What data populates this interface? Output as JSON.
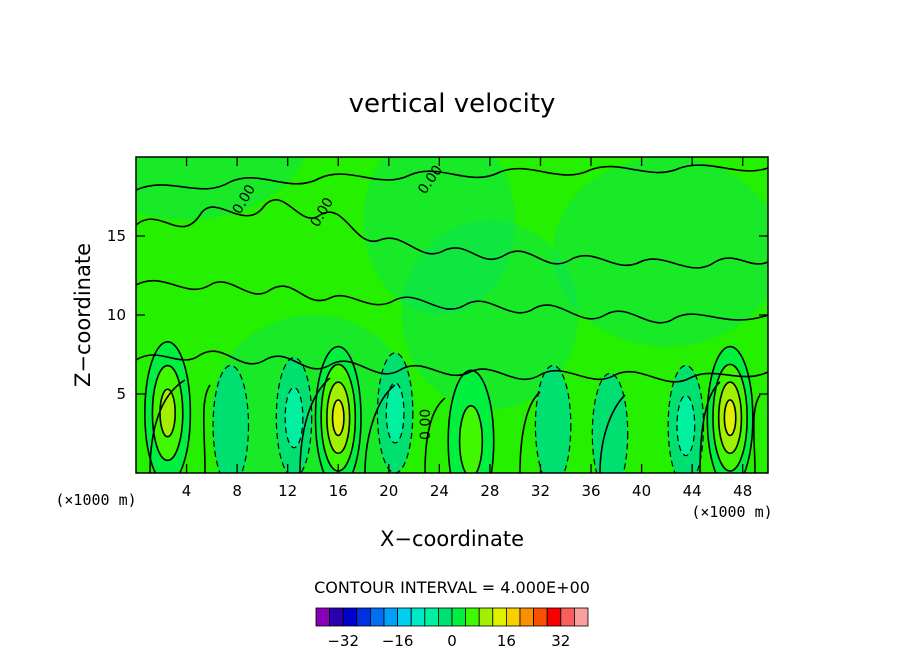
{
  "chart_data": {
    "type": "contour",
    "title": "vertical velocity",
    "xlabel": "X−coordinate",
    "ylabel": "Z−coordinate",
    "x_unit": "(×1000 m)",
    "y_unit": "(×1000 m)",
    "xlim": [
      0,
      50
    ],
    "ylim": [
      0,
      20
    ],
    "x_ticks": [
      4,
      8,
      12,
      16,
      20,
      24,
      28,
      32,
      36,
      40,
      44,
      48
    ],
    "x_tick_labels": [
      "4",
      "8",
      "12",
      "16",
      "20",
      "24",
      "28",
      "32",
      "36",
      "40",
      "44",
      "48"
    ],
    "y_ticks": [
      5,
      10,
      15
    ],
    "y_tick_labels": [
      "5",
      "10",
      "15"
    ],
    "contour_label": "0.00",
    "contour_interval_text": "CONTOUR INTERVAL = 4.000E+00",
    "colorbar": {
      "levels": [
        -36,
        -32,
        -28,
        -24,
        -20,
        -16,
        -12,
        -8,
        -4,
        0,
        4,
        8,
        12,
        16,
        20,
        24,
        28,
        32,
        36
      ],
      "colors": [
        "#8a00b8",
        "#2a00b0",
        "#0000cc",
        "#0030e0",
        "#0070f0",
        "#00a0f8",
        "#00d0f0",
        "#00e8c8",
        "#00f0a0",
        "#00e070",
        "#00f040",
        "#40f800",
        "#a0f000",
        "#e0f000",
        "#f8d000",
        "#f89000",
        "#f85000",
        "#f80000",
        "#f86060",
        "#f8a0a0"
      ],
      "tick_values": [
        -32,
        -16,
        0,
        16,
        32
      ],
      "tick_labels": [
        "−32",
        "−16",
        "0",
        "16",
        "32"
      ]
    },
    "background_color": "#25f000",
    "updraft_centers": [
      {
        "x": 2.5,
        "z": 3.8,
        "max": 12
      },
      {
        "x": 16.0,
        "z": 3.5,
        "max": 16
      },
      {
        "x": 26.5,
        "z": 2.0,
        "max": 8
      },
      {
        "x": 47.0,
        "z": 3.5,
        "max": 16
      }
    ],
    "downdraft_centers": [
      {
        "x": 7.5,
        "z": 3.0,
        "min": -4
      },
      {
        "x": 12.5,
        "z": 3.5,
        "min": -8
      },
      {
        "x": 20.5,
        "z": 3.8,
        "min": -8
      },
      {
        "x": 33.0,
        "z": 3.0,
        "min": -4
      },
      {
        "x": 37.5,
        "z": 2.5,
        "min": -4
      },
      {
        "x": 43.5,
        "z": 3.0,
        "min": -8
      }
    ]
  }
}
